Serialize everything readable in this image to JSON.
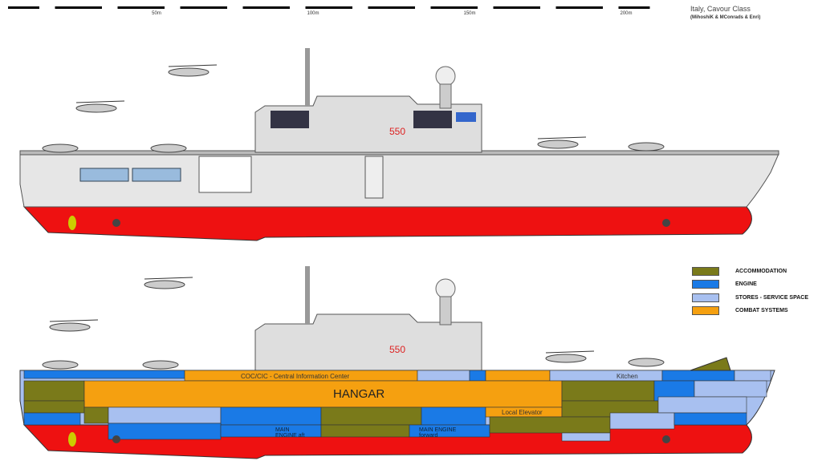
{
  "header": {
    "title": "Italy, Cavour Class",
    "credit": "(MihoshiK & MConrads & Enri)"
  },
  "scale": {
    "ticks": [
      "50m",
      "100m",
      "150m",
      "200m"
    ]
  },
  "hull_number": "550",
  "legend": [
    {
      "label": "ACCOMMODATION",
      "color": "#7a7a1a"
    },
    {
      "label": "ENGINE",
      "color": "#1a7ae6"
    },
    {
      "label": "STORES - SERVICE SPACE",
      "color": "#a8c0f0"
    },
    {
      "label": "COMBAT SYSTEMS",
      "color": "#f5a010"
    }
  ],
  "labels": {
    "cic": "COC/CIC - Central Information Center",
    "hangar": "HANGAR",
    "kitchen": "Kitchen",
    "elevator": "Local Elevator",
    "engine_aft": "MAIN ENGINE aft",
    "engine_fwd": "MAIN ENGINE forward"
  },
  "colors": {
    "hull": "#e6e6e6",
    "below_water": "#ee1111",
    "outline": "#444444"
  }
}
